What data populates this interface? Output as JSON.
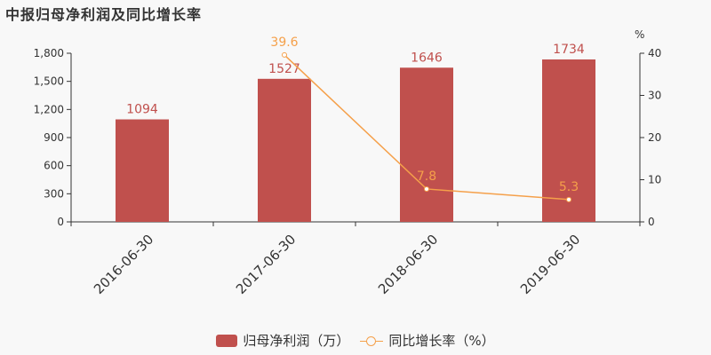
{
  "title": "中报归母净利润及同比增长率",
  "colors": {
    "bar": "#c0504d",
    "line": "#f5a04a",
    "axis": "#333333"
  },
  "chart_data": {
    "type": "bar",
    "categories": [
      "2016-06-30",
      "2017-06-30",
      "2018-06-30",
      "2019-06-30"
    ],
    "series": [
      {
        "name": "归母净利润（万）",
        "type": "bar",
        "axis": "left",
        "values": [
          1094,
          1527,
          1646,
          1734
        ]
      },
      {
        "name": "同比增长率（%）",
        "type": "line",
        "axis": "right",
        "values": [
          null,
          39.6,
          7.8,
          5.3
        ]
      }
    ],
    "y_left": {
      "ticks": [
        "0",
        "300",
        "600",
        "900",
        "1,200",
        "1,500",
        "1,800"
      ],
      "ylim": [
        0,
        1800
      ]
    },
    "y_right": {
      "unit": "%",
      "ticks": [
        "0",
        "10",
        "20",
        "30",
        "40"
      ],
      "ylim": [
        0,
        40
      ]
    },
    "grid": false,
    "legend": "bottom-center"
  }
}
